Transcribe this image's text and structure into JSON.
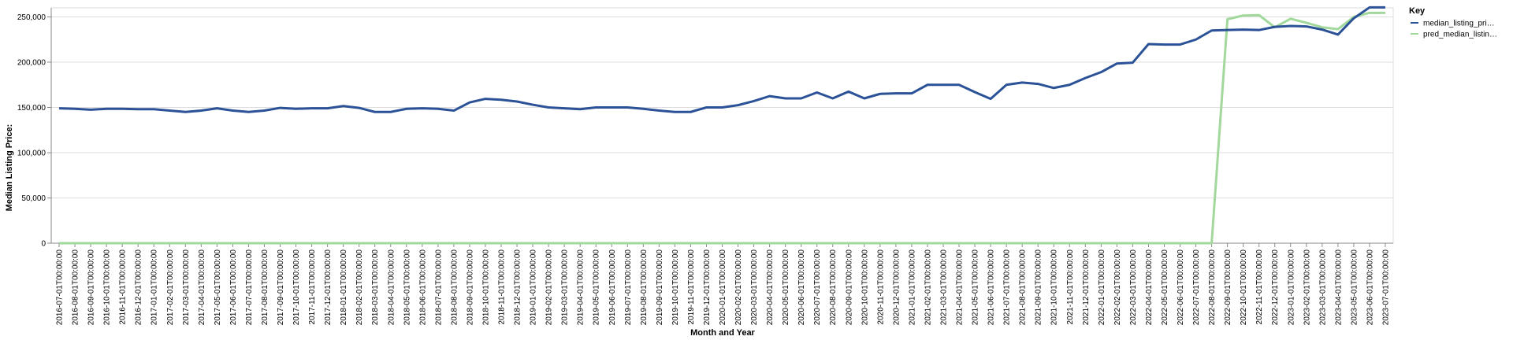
{
  "chart_data": {
    "type": "line",
    "xlabel": "Month and Year",
    "ylabel": "Median Listing Price:",
    "ylim": [
      0,
      260000
    ],
    "yticks": [
      0,
      50000,
      100000,
      150000,
      200000,
      250000
    ],
    "ytick_labels": [
      "0",
      "50,000",
      "100,000",
      "150,000",
      "200,000",
      "250,000"
    ],
    "grid": true,
    "legend": {
      "title": "Key",
      "position": "right"
    },
    "x": [
      "2016-07-01T00:00:00",
      "2016-08-01T00:00:00",
      "2016-09-01T00:00:00",
      "2016-10-01T00:00:00",
      "2016-11-01T00:00:00",
      "2016-12-01T00:00:00",
      "2017-01-01T00:00:00",
      "2017-02-01T00:00:00",
      "2017-03-01T00:00:00",
      "2017-04-01T00:00:00",
      "2017-05-01T00:00:00",
      "2017-06-01T00:00:00",
      "2017-07-01T00:00:00",
      "2017-08-01T00:00:00",
      "2017-09-01T00:00:00",
      "2017-10-01T00:00:00",
      "2017-11-01T00:00:00",
      "2017-12-01T00:00:00",
      "2018-01-01T00:00:00",
      "2018-02-01T00:00:00",
      "2018-03-01T00:00:00",
      "2018-04-01T00:00:00",
      "2018-05-01T00:00:00",
      "2018-06-01T00:00:00",
      "2018-07-01T00:00:00",
      "2018-08-01T00:00:00",
      "2018-09-01T00:00:00",
      "2018-10-01T00:00:00",
      "2018-11-01T00:00:00",
      "2018-12-01T00:00:00",
      "2019-01-01T00:00:00",
      "2019-02-01T00:00:00",
      "2019-03-01T00:00:00",
      "2019-04-01T00:00:00",
      "2019-05-01T00:00:00",
      "2019-06-01T00:00:00",
      "2019-07-01T00:00:00",
      "2019-08-01T00:00:00",
      "2019-09-01T00:00:00",
      "2019-10-01T00:00:00",
      "2019-11-01T00:00:00",
      "2019-12-01T00:00:00",
      "2020-01-01T00:00:00",
      "2020-02-01T00:00:00",
      "2020-03-01T00:00:00",
      "2020-04-01T00:00:00",
      "2020-05-01T00:00:00",
      "2020-06-01T00:00:00",
      "2020-07-01T00:00:00",
      "2020-08-01T00:00:00",
      "2020-09-01T00:00:00",
      "2020-10-01T00:00:00",
      "2020-11-01T00:00:00",
      "2020-12-01T00:00:00",
      "2021-01-01T00:00:00",
      "2021-02-01T00:00:00",
      "2021-03-01T00:00:00",
      "2021-04-01T00:00:00",
      "2021-05-01T00:00:00",
      "2021-06-01T00:00:00",
      "2021-07-01T00:00:00",
      "2021-08-01T00:00:00",
      "2021-09-01T00:00:00",
      "2021-10-01T00:00:00",
      "2021-11-01T00:00:00",
      "2021-12-01T00:00:00",
      "2022-01-01T00:00:00",
      "2022-02-01T00:00:00",
      "2022-03-01T00:00:00",
      "2022-04-01T00:00:00",
      "2022-05-01T00:00:00",
      "2022-06-01T00:00:00",
      "2022-07-01T00:00:00",
      "2022-08-01T00:00:00",
      "2022-09-01T00:00:00",
      "2022-10-01T00:00:00",
      "2022-11-01T00:00:00",
      "2022-12-01T00:00:00",
      "2023-01-01T00:00:00",
      "2023-02-01T00:00:00",
      "2023-03-01T00:00:00",
      "2023-04-01T00:00:00",
      "2023-05-01T00:00:00",
      "2023-06-01T00:00:00",
      "2023-07-01T00:00:00"
    ],
    "series": [
      {
        "name": "median_listing_pri…",
        "color": "#2b5297",
        "values": [
          149000,
          148500,
          147500,
          148500,
          148500,
          148000,
          148000,
          146500,
          145000,
          146500,
          149000,
          146500,
          145000,
          146500,
          149500,
          148500,
          149000,
          149000,
          151500,
          149500,
          145000,
          145000,
          148500,
          149000,
          148500,
          146500,
          155500,
          159500,
          158500,
          156500,
          153000,
          150000,
          149000,
          148000,
          150000,
          150000,
          150000,
          148500,
          146500,
          145000,
          145000,
          150000,
          150000,
          152500,
          157000,
          162500,
          160000,
          160000,
          166500,
          160000,
          167500,
          160000,
          165000,
          165500,
          165500,
          175000,
          175000,
          175000,
          167000,
          159500,
          175000,
          177500,
          176000,
          171500,
          175000,
          182500,
          189000,
          198500,
          199500,
          220000,
          219500,
          219500,
          225000,
          235000,
          235500,
          236000,
          235500,
          239000,
          240000,
          239500,
          236000,
          230500,
          248500,
          260500,
          260500
        ]
      },
      {
        "name": "pred_median_listin…",
        "color": "#a2d89c",
        "values": [
          0,
          0,
          0,
          0,
          0,
          0,
          0,
          0,
          0,
          0,
          0,
          0,
          0,
          0,
          0,
          0,
          0,
          0,
          0,
          0,
          0,
          0,
          0,
          0,
          0,
          0,
          0,
          0,
          0,
          0,
          0,
          0,
          0,
          0,
          0,
          0,
          0,
          0,
          0,
          0,
          0,
          0,
          0,
          0,
          0,
          0,
          0,
          0,
          0,
          0,
          0,
          0,
          0,
          0,
          0,
          0,
          0,
          0,
          0,
          0,
          0,
          0,
          0,
          0,
          0,
          0,
          0,
          0,
          0,
          0,
          0,
          0,
          0,
          0,
          247500,
          251500,
          252000,
          238500,
          248000,
          243500,
          238500,
          236500,
          250000,
          254500,
          254500
        ]
      }
    ]
  }
}
